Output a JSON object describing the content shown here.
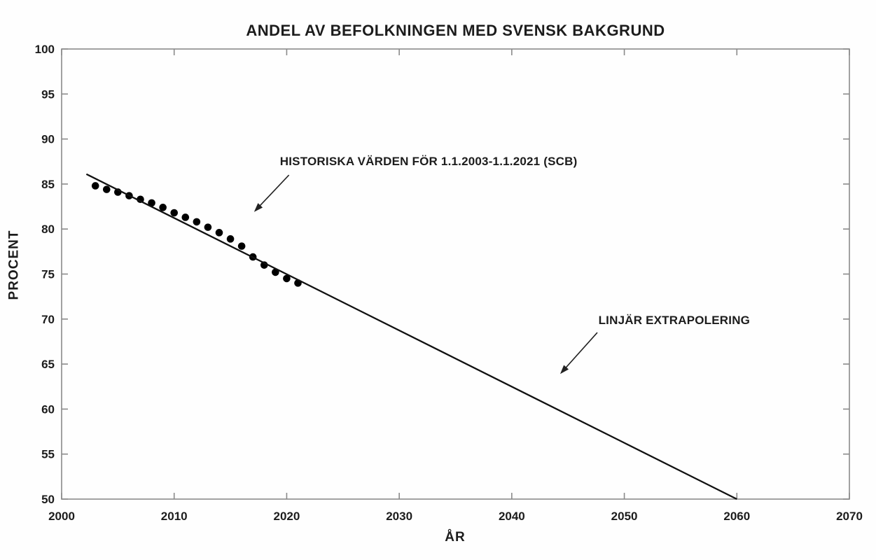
{
  "figure": {
    "background": "#fefefe",
    "axis_color": "#8a8a8a",
    "text_color": "#1c1c1c",
    "data_color": "#000000"
  },
  "chart_data": {
    "type": "scatter",
    "title": "ANDEL AV BEFOLKNINGEN MED SVENSK BAKGRUND",
    "xlabel": "ÅR",
    "ylabel": "PROCENT",
    "xlim": [
      2000,
      2070
    ],
    "ylim": [
      50,
      100
    ],
    "xticks": [
      2000,
      2010,
      2020,
      2030,
      2040,
      2050,
      2060,
      2070
    ],
    "yticks": [
      50,
      55,
      60,
      65,
      70,
      75,
      80,
      85,
      90,
      95,
      100
    ],
    "grid": false,
    "legend": "none",
    "series": [
      {
        "name": "HISTORISKA VÄRDEN (SCB)",
        "type": "scatter",
        "x": [
          2003,
          2004,
          2005,
          2006,
          2007,
          2008,
          2009,
          2010,
          2011,
          2012,
          2013,
          2014,
          2015,
          2016,
          2017,
          2018,
          2019,
          2020,
          2021
        ],
        "y": [
          84.8,
          84.4,
          84.1,
          83.7,
          83.3,
          82.9,
          82.4,
          81.8,
          81.3,
          80.8,
          80.2,
          79.6,
          78.9,
          78.1,
          76.9,
          76.0,
          75.2,
          74.5,
          74.0
        ]
      },
      {
        "name": "LINJÄR EXTRAPOLERING",
        "type": "line",
        "x": [
          2002.2,
          2060
        ],
        "y": [
          86.1,
          50
        ]
      }
    ],
    "annotations": [
      {
        "text": "HISTORISKA VÄRDEN FÖR 1.1.2003-1.1.2021 (SCB)",
        "text_xy": [
          2019.4,
          86.9
        ],
        "arrow_from": [
          2020.2,
          86.0
        ],
        "arrow_to": [
          2017.1,
          81.9
        ]
      },
      {
        "text": "LINJÄR EXTRAPOLERING",
        "text_xy": [
          2047.7,
          69.3
        ],
        "arrow_from": [
          2047.6,
          68.5
        ],
        "arrow_to": [
          2044.3,
          63.9
        ]
      }
    ]
  }
}
